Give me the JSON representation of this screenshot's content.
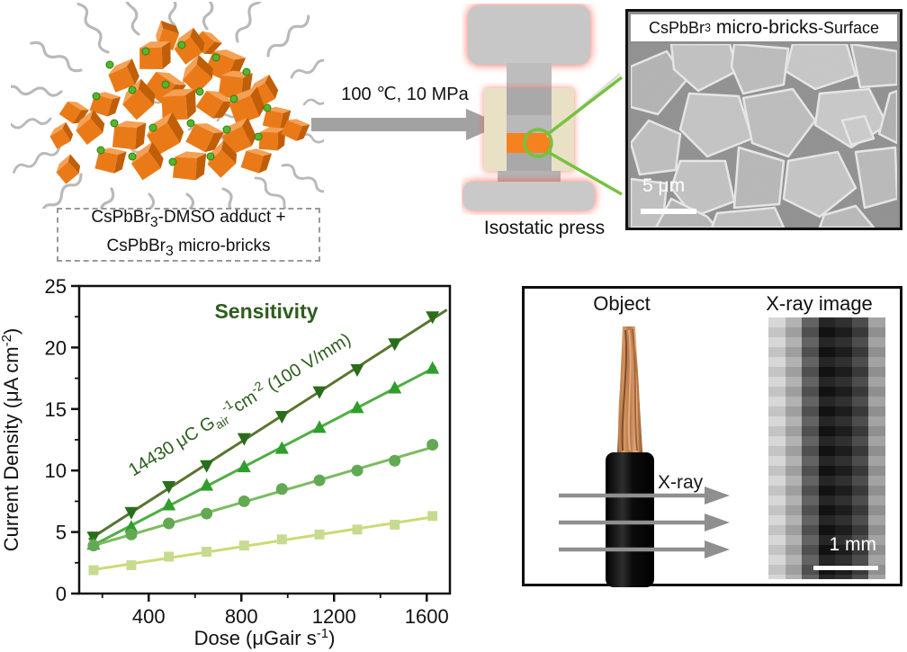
{
  "page": {
    "adduct_label": {
      "formula1": "CsPbBr",
      "sub1": "3",
      "rest1": "-DMSO adduct +",
      "formula2": "CsPbBr",
      "sub2": "3",
      "rest2": " micro-bricks"
    },
    "process": {
      "conditions": "100 ℃, 10 MPa",
      "press_label": "Isostatic press"
    },
    "sem": {
      "formula": "CsPbBr",
      "sub": "3",
      "mid": " micro-bricks",
      "suffix": "-Surface",
      "scale_bar": "5 μm"
    },
    "xray": {
      "object_label": "Object",
      "image_label": "X-ray image",
      "beam_label": "X-ray",
      "scale_bar": "1 mm",
      "band_colors": [
        "#d4d4d4",
        "#ababab",
        "#565656",
        "#131313",
        "#1f1f1f",
        "#3e3e3e",
        "#9b9b9b"
      ]
    }
  },
  "chart_data": {
    "type": "scatter",
    "title": "Sensitivity",
    "title_color": "#2e5d1e",
    "xlabel": "Dose (μGair s⁻¹)",
    "ylabel": "Current Density (μA cm⁻²)",
    "xlabel_parts": {
      "pre": "Dose  (μGair s",
      "sup": "-1",
      "post": ")"
    },
    "ylabel_parts": {
      "pre": "Current Density (μA cm",
      "sup": "-2",
      "post": ")"
    },
    "xlim": [
      100,
      1700
    ],
    "ylim": [
      0,
      25
    ],
    "xticks": [
      400,
      800,
      1200,
      1600
    ],
    "xminor": [
      200,
      600,
      1000,
      1400
    ],
    "yticks": [
      0,
      5,
      10,
      15,
      20,
      25
    ],
    "yminor": [
      2.5,
      7.5,
      12.5,
      17.5,
      22.5
    ],
    "grid": false,
    "legend": "none",
    "annotation": "14430 μC Gair⁻¹cm⁻² (100 V/mm)",
    "annotation_parts": {
      "pre": "14430 μC G",
      "sub": "air",
      "sup1": "-1",
      "mid": "cm",
      "sup2": "-2",
      "post": " (100 V/mm)"
    },
    "annotation_color": "#2e5d1e",
    "x": [
      162,
      325,
      487,
      650,
      812,
      975,
      1137,
      1300,
      1462,
      1625
    ],
    "series": [
      {
        "marker": "triangle-down",
        "marker_color": "#2a6e1c",
        "line_color": "#5a7531",
        "extend_line": true,
        "values": [
          4.6,
          6.6,
          8.7,
          10.4,
          12.6,
          14.4,
          16.4,
          18.2,
          20.3,
          22.5
        ]
      },
      {
        "marker": "triangle-up",
        "marker_color": "#2f9e2b",
        "line_color": "#4fae43",
        "values": [
          4.0,
          5.4,
          7.2,
          8.8,
          10.3,
          11.8,
          13.5,
          15.1,
          16.7,
          18.3
        ]
      },
      {
        "marker": "circle",
        "marker_color": "#63a953",
        "line_color": "#7cbb5f",
        "values": [
          3.9,
          4.8,
          5.7,
          6.5,
          7.5,
          8.5,
          9.2,
          10.0,
          10.8,
          12.1
        ]
      },
      {
        "marker": "square",
        "marker_color": "#c7db90",
        "line_color": "#ccda72",
        "values": [
          1.9,
          2.3,
          3.0,
          3.4,
          3.9,
          4.4,
          4.8,
          5.2,
          5.6,
          6.3
        ]
      }
    ]
  }
}
